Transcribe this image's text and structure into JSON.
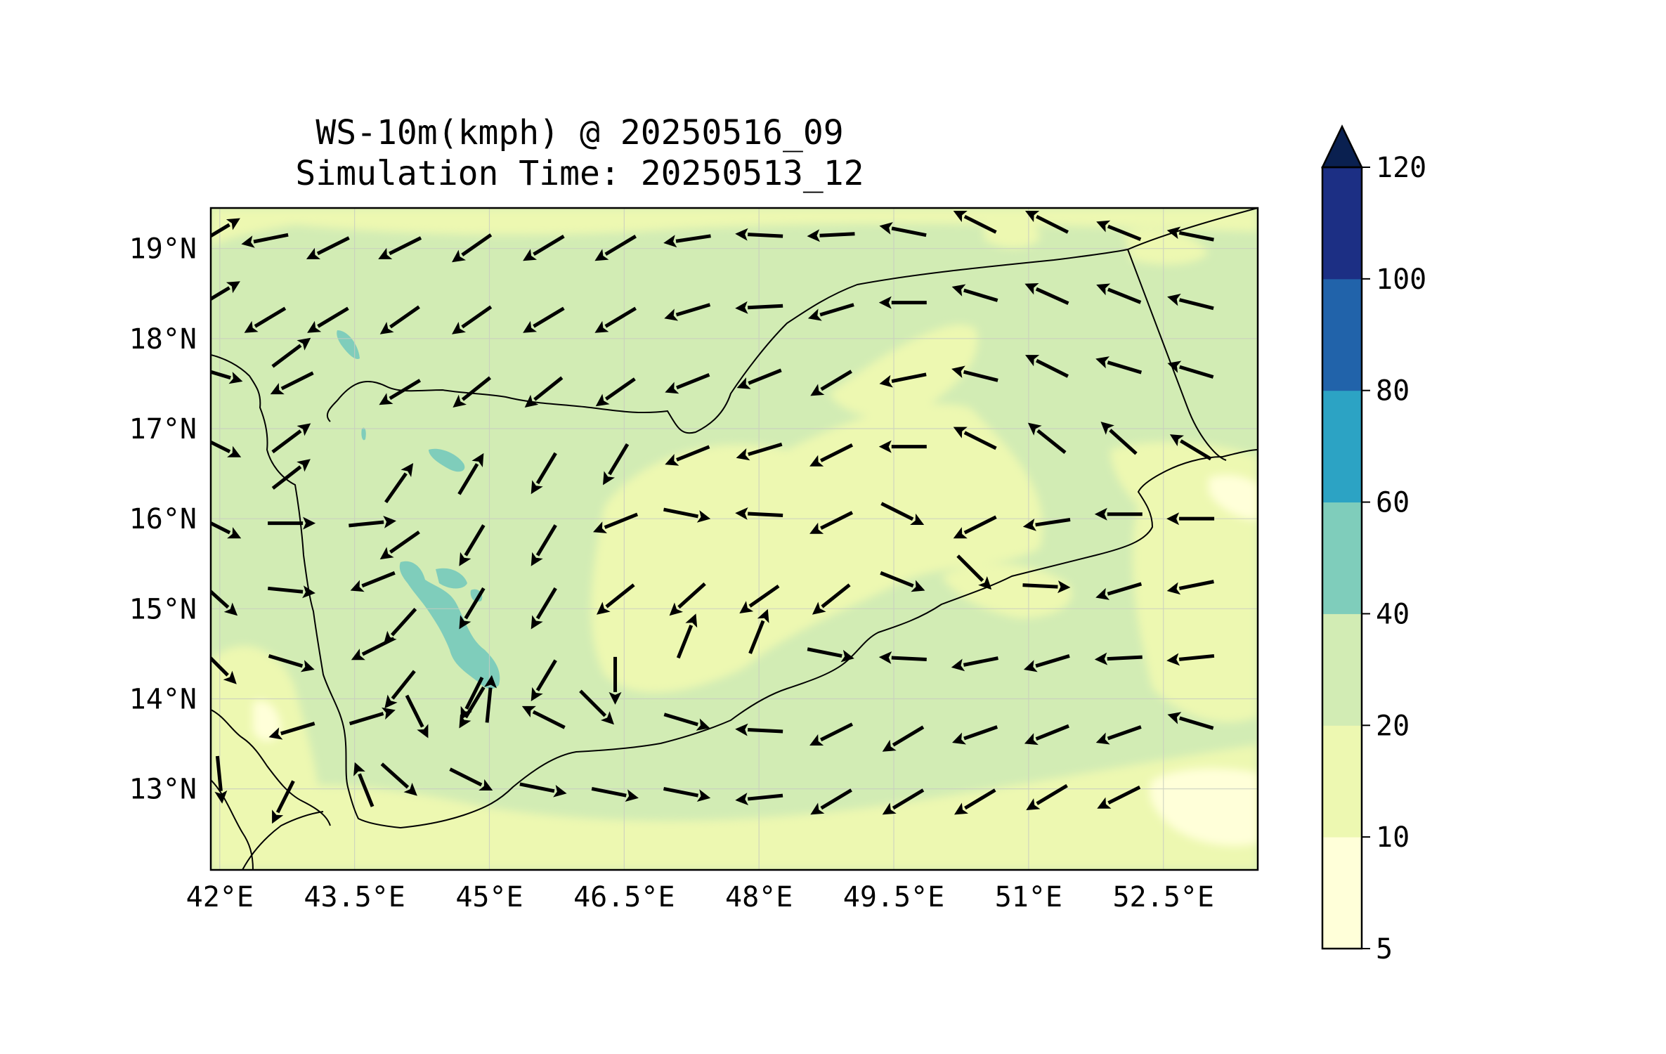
{
  "title": "WS-10m(kmph) @ 20250516_09",
  "subtitle": "Simulation Time: 20250513_12",
  "map": {
    "lon_range": [
      41.9,
      53.55
    ],
    "lat_range": [
      12.1,
      19.45
    ],
    "lon_ticks": [
      "42°E",
      "43.5°E",
      "45°E",
      "46.5°E",
      "48°E",
      "49.5°E",
      "51°E",
      "52.5°E"
    ],
    "lon_tick_values": [
      42,
      43.5,
      45,
      46.5,
      48,
      49.5,
      51,
      52.5
    ],
    "lat_ticks": [
      "19°N",
      "18°N",
      "17°N",
      "16°N",
      "15°N",
      "14°N",
      "13°N"
    ],
    "lat_tick_values": [
      19,
      18,
      17,
      16,
      15,
      14,
      13
    ],
    "grid": true,
    "background_color": "#d2ecb4"
  },
  "colorbar": {
    "levels": [
      "5",
      "10",
      "20",
      "40",
      "60",
      "80",
      "100",
      "120"
    ],
    "colors": [
      "#ffffd9",
      "#edf8b1",
      "#d2ecb4",
      "#7fcdbb",
      "#2ca3c4",
      "#2163aa",
      "#1c2f84"
    ],
    "extend_color": "#0a2050",
    "extend": "max"
  },
  "chart_data": {
    "type": "heatmap",
    "title": "WS-10m(kmph) @ 20250516_09",
    "subtitle": "Simulation Time: 20250513_12",
    "xlabel": "",
    "ylabel": "",
    "xlim": [
      41.9,
      53.55
    ],
    "ylim": [
      12.1,
      19.45
    ],
    "colorbar_label": "",
    "wind_vectors": [
      {
        "lon": 42.0,
        "lat": 19.2,
        "u": 1.0,
        "v": 0.6
      },
      {
        "lon": 42.5,
        "lat": 19.1,
        "u": -1.0,
        "v": -0.2
      },
      {
        "lon": 43.2,
        "lat": 19.0,
        "u": -1.0,
        "v": -0.5
      },
      {
        "lon": 44.0,
        "lat": 19.0,
        "u": -1.0,
        "v": -0.5
      },
      {
        "lon": 44.8,
        "lat": 19.0,
        "u": -1.0,
        "v": -0.7
      },
      {
        "lon": 45.6,
        "lat": 19.0,
        "u": -1.0,
        "v": -0.6
      },
      {
        "lon": 46.4,
        "lat": 19.0,
        "u": -1.0,
        "v": -0.6
      },
      {
        "lon": 47.2,
        "lat": 19.1,
        "u": -1.0,
        "v": -0.15
      },
      {
        "lon": 48.0,
        "lat": 19.15,
        "u": -1.0,
        "v": 0.05
      },
      {
        "lon": 48.8,
        "lat": 19.15,
        "u": -1.0,
        "v": -0.05
      },
      {
        "lon": 49.6,
        "lat": 19.2,
        "u": -1.0,
        "v": 0.2
      },
      {
        "lon": 50.4,
        "lat": 19.3,
        "u": -1.0,
        "v": 0.5
      },
      {
        "lon": 51.2,
        "lat": 19.3,
        "u": -1.0,
        "v": 0.5
      },
      {
        "lon": 52.0,
        "lat": 19.2,
        "u": -1.0,
        "v": 0.4
      },
      {
        "lon": 52.8,
        "lat": 19.15,
        "u": -1.0,
        "v": 0.2
      },
      {
        "lon": 42.0,
        "lat": 18.5,
        "u": 1.0,
        "v": 0.6
      },
      {
        "lon": 42.5,
        "lat": 18.2,
        "u": -1.0,
        "v": -0.6
      },
      {
        "lon": 43.2,
        "lat": 18.2,
        "u": -1.0,
        "v": -0.6
      },
      {
        "lon": 44.0,
        "lat": 18.2,
        "u": -1.0,
        "v": -0.7
      },
      {
        "lon": 44.8,
        "lat": 18.2,
        "u": -1.0,
        "v": -0.7
      },
      {
        "lon": 45.6,
        "lat": 18.2,
        "u": -1.0,
        "v": -0.6
      },
      {
        "lon": 46.4,
        "lat": 18.2,
        "u": -1.0,
        "v": -0.6
      },
      {
        "lon": 47.2,
        "lat": 18.3,
        "u": -1.0,
        "v": -0.3
      },
      {
        "lon": 48.0,
        "lat": 18.35,
        "u": -1.0,
        "v": -0.05
      },
      {
        "lon": 48.8,
        "lat": 18.3,
        "u": -1.0,
        "v": -0.3
      },
      {
        "lon": 49.6,
        "lat": 18.4,
        "u": -1.0,
        "v": 0.0
      },
      {
        "lon": 50.4,
        "lat": 18.5,
        "u": -1.0,
        "v": 0.3
      },
      {
        "lon": 51.2,
        "lat": 18.5,
        "u": -1.0,
        "v": 0.45
      },
      {
        "lon": 52.0,
        "lat": 18.5,
        "u": -1.0,
        "v": 0.4
      },
      {
        "lon": 52.8,
        "lat": 18.4,
        "u": -1.0,
        "v": 0.25
      },
      {
        "lon": 42.0,
        "lat": 17.6,
        "u": 1.0,
        "v": -0.3
      },
      {
        "lon": 42.8,
        "lat": 17.85,
        "u": 0.8,
        "v": 0.6
      },
      {
        "lon": 42.8,
        "lat": 17.5,
        "u": -1.0,
        "v": -0.5
      },
      {
        "lon": 44.0,
        "lat": 17.4,
        "u": -1.0,
        "v": -0.6
      },
      {
        "lon": 44.8,
        "lat": 17.4,
        "u": -1.0,
        "v": -0.8
      },
      {
        "lon": 45.6,
        "lat": 17.4,
        "u": -1.0,
        "v": -0.8
      },
      {
        "lon": 46.4,
        "lat": 17.4,
        "u": -1.0,
        "v": -0.7
      },
      {
        "lon": 47.2,
        "lat": 17.5,
        "u": -1.0,
        "v": -0.4
      },
      {
        "lon": 48.0,
        "lat": 17.55,
        "u": -1.0,
        "v": -0.4
      },
      {
        "lon": 48.8,
        "lat": 17.5,
        "u": -1.0,
        "v": -0.6
      },
      {
        "lon": 49.6,
        "lat": 17.55,
        "u": -1.0,
        "v": -0.2
      },
      {
        "lon": 50.4,
        "lat": 17.6,
        "u": -1.0,
        "v": 0.25
      },
      {
        "lon": 51.2,
        "lat": 17.7,
        "u": -1.0,
        "v": 0.5
      },
      {
        "lon": 52.0,
        "lat": 17.7,
        "u": -1.0,
        "v": 0.3
      },
      {
        "lon": 52.8,
        "lat": 17.65,
        "u": -1.0,
        "v": 0.3
      },
      {
        "lon": 42.0,
        "lat": 16.8,
        "u": 1.0,
        "v": -0.5
      },
      {
        "lon": 42.8,
        "lat": 16.9,
        "u": 0.8,
        "v": 0.6
      },
      {
        "lon": 42.8,
        "lat": 16.5,
        "u": 0.9,
        "v": 0.7
      },
      {
        "lon": 44.0,
        "lat": 16.4,
        "u": 0.7,
        "v": 1.0
      },
      {
        "lon": 44.8,
        "lat": 16.5,
        "u": 0.6,
        "v": 1.0
      },
      {
        "lon": 45.6,
        "lat": 16.5,
        "u": -0.6,
        "v": -1.0
      },
      {
        "lon": 46.4,
        "lat": 16.6,
        "u": -0.6,
        "v": -1.0
      },
      {
        "lon": 47.2,
        "lat": 16.7,
        "u": -1.0,
        "v": -0.4
      },
      {
        "lon": 48.0,
        "lat": 16.75,
        "u": -1.0,
        "v": -0.3
      },
      {
        "lon": 48.8,
        "lat": 16.7,
        "u": -1.0,
        "v": -0.5
      },
      {
        "lon": 49.6,
        "lat": 16.8,
        "u": -1.0,
        "v": 0.0
      },
      {
        "lon": 50.4,
        "lat": 16.9,
        "u": -1.0,
        "v": 0.5
      },
      {
        "lon": 51.2,
        "lat": 16.9,
        "u": -1.0,
        "v": 0.8
      },
      {
        "lon": 52.0,
        "lat": 16.9,
        "u": -1.0,
        "v": 0.9
      },
      {
        "lon": 52.8,
        "lat": 16.8,
        "u": -1.0,
        "v": 0.6
      },
      {
        "lon": 42.0,
        "lat": 15.9,
        "u": 1.0,
        "v": -0.5
      },
      {
        "lon": 42.8,
        "lat": 15.95,
        "u": 1.0,
        "v": 0.0
      },
      {
        "lon": 43.7,
        "lat": 15.95,
        "u": 1.0,
        "v": 0.1
      },
      {
        "lon": 44.0,
        "lat": 15.7,
        "u": -1.0,
        "v": -0.7
      },
      {
        "lon": 44.8,
        "lat": 15.7,
        "u": -0.6,
        "v": -1.0
      },
      {
        "lon": 45.6,
        "lat": 15.7,
        "u": -0.6,
        "v": -1.0
      },
      {
        "lon": 46.4,
        "lat": 15.95,
        "u": -1.0,
        "v": -0.4
      },
      {
        "lon": 47.2,
        "lat": 16.05,
        "u": 1.0,
        "v": -0.2
      },
      {
        "lon": 48.0,
        "lat": 16.05,
        "u": -1.0,
        "v": 0.05
      },
      {
        "lon": 48.8,
        "lat": 15.95,
        "u": -1.0,
        "v": -0.5
      },
      {
        "lon": 49.6,
        "lat": 16.05,
        "u": 1.0,
        "v": -0.5
      },
      {
        "lon": 50.4,
        "lat": 15.9,
        "u": -1.0,
        "v": -0.5
      },
      {
        "lon": 51.2,
        "lat": 15.95,
        "u": -1.0,
        "v": -0.15
      },
      {
        "lon": 52.0,
        "lat": 16.05,
        "u": -1.0,
        "v": 0.0
      },
      {
        "lon": 52.8,
        "lat": 16.0,
        "u": -1.0,
        "v": 0.0
      },
      {
        "lon": 42.0,
        "lat": 15.1,
        "u": 1.0,
        "v": -0.9
      },
      {
        "lon": 42.8,
        "lat": 15.2,
        "u": 1.0,
        "v": -0.1
      },
      {
        "lon": 43.7,
        "lat": 15.3,
        "u": -1.0,
        "v": -0.4
      },
      {
        "lon": 44.0,
        "lat": 14.8,
        "u": -0.9,
        "v": -1.0
      },
      {
        "lon": 44.8,
        "lat": 15.0,
        "u": -0.6,
        "v": -1.0
      },
      {
        "lon": 45.6,
        "lat": 15.0,
        "u": -0.6,
        "v": -1.0
      },
      {
        "lon": 46.4,
        "lat": 15.1,
        "u": -1.0,
        "v": -0.8
      },
      {
        "lon": 47.2,
        "lat": 15.1,
        "u": -1.0,
        "v": -0.9
      },
      {
        "lon": 48.0,
        "lat": 15.1,
        "u": -1.0,
        "v": -0.7
      },
      {
        "lon": 48.8,
        "lat": 15.1,
        "u": -1.0,
        "v": -0.8
      },
      {
        "lon": 49.6,
        "lat": 15.3,
        "u": 1.0,
        "v": -0.4
      },
      {
        "lon": 50.4,
        "lat": 15.4,
        "u": 1.0,
        "v": -1.0
      },
      {
        "lon": 51.2,
        "lat": 15.25,
        "u": 1.0,
        "v": -0.05
      },
      {
        "lon": 52.0,
        "lat": 15.2,
        "u": -1.0,
        "v": -0.3
      },
      {
        "lon": 52.8,
        "lat": 15.25,
        "u": -1.0,
        "v": -0.2
      },
      {
        "lon": 42.0,
        "lat": 14.35,
        "u": 1.0,
        "v": -1.0
      },
      {
        "lon": 42.8,
        "lat": 14.4,
        "u": 1.0,
        "v": -0.3
      },
      {
        "lon": 43.7,
        "lat": 14.55,
        "u": -1.0,
        "v": -0.5
      },
      {
        "lon": 44.0,
        "lat": 14.1,
        "u": -0.8,
        "v": -1.0
      },
      {
        "lon": 44.8,
        "lat": 14.0,
        "u": -0.5,
        "v": -1.0
      },
      {
        "lon": 45.0,
        "lat": 14.0,
        "u": 0.1,
        "v": 1.0
      },
      {
        "lon": 45.6,
        "lat": 14.2,
        "u": -0.6,
        "v": -1.0
      },
      {
        "lon": 46.4,
        "lat": 14.2,
        "u": 0.0,
        "v": -1.0
      },
      {
        "lon": 47.2,
        "lat": 14.7,
        "u": 0.4,
        "v": 1.0
      },
      {
        "lon": 48.0,
        "lat": 14.75,
        "u": 0.4,
        "v": 1.0
      },
      {
        "lon": 48.8,
        "lat": 14.5,
        "u": 1.0,
        "v": -0.2
      },
      {
        "lon": 49.6,
        "lat": 14.45,
        "u": -1.0,
        "v": 0.05
      },
      {
        "lon": 50.4,
        "lat": 14.4,
        "u": -1.0,
        "v": -0.2
      },
      {
        "lon": 51.2,
        "lat": 14.4,
        "u": -1.0,
        "v": -0.3
      },
      {
        "lon": 52.0,
        "lat": 14.45,
        "u": -1.0,
        "v": -0.05
      },
      {
        "lon": 52.8,
        "lat": 14.45,
        "u": -1.0,
        "v": -0.1
      },
      {
        "lon": 42.8,
        "lat": 13.65,
        "u": -1.0,
        "v": -0.3
      },
      {
        "lon": 43.7,
        "lat": 13.8,
        "u": 1.0,
        "v": 0.3
      },
      {
        "lon": 44.2,
        "lat": 13.8,
        "u": 0.5,
        "v": -1.0
      },
      {
        "lon": 44.8,
        "lat": 13.9,
        "u": -0.6,
        "v": -1.0
      },
      {
        "lon": 45.6,
        "lat": 13.8,
        "u": -1.0,
        "v": 0.5
      },
      {
        "lon": 46.2,
        "lat": 13.9,
        "u": 1.0,
        "v": -1.0
      },
      {
        "lon": 47.2,
        "lat": 13.75,
        "u": 1.0,
        "v": -0.3
      },
      {
        "lon": 48.0,
        "lat": 13.65,
        "u": -1.0,
        "v": 0.05
      },
      {
        "lon": 48.8,
        "lat": 13.6,
        "u": -1.0,
        "v": -0.5
      },
      {
        "lon": 49.6,
        "lat": 13.55,
        "u": -1.0,
        "v": -0.6
      },
      {
        "lon": 50.4,
        "lat": 13.6,
        "u": -1.0,
        "v": -0.35
      },
      {
        "lon": 51.2,
        "lat": 13.6,
        "u": -1.0,
        "v": -0.4
      },
      {
        "lon": 52.0,
        "lat": 13.6,
        "u": -1.0,
        "v": -0.35
      },
      {
        "lon": 52.8,
        "lat": 13.75,
        "u": -1.0,
        "v": 0.3
      },
      {
        "lon": 42.0,
        "lat": 13.1,
        "u": 0.1,
        "v": -1.0
      },
      {
        "lon": 42.7,
        "lat": 12.85,
        "u": -0.5,
        "v": -1.0
      },
      {
        "lon": 43.6,
        "lat": 13.05,
        "u": -0.4,
        "v": 1.0
      },
      {
        "lon": 44.0,
        "lat": 13.1,
        "u": 1.0,
        "v": -0.9
      },
      {
        "lon": 44.8,
        "lat": 13.1,
        "u": 1.0,
        "v": -0.5
      },
      {
        "lon": 45.6,
        "lat": 13.0,
        "u": 1.0,
        "v": -0.2
      },
      {
        "lon": 46.4,
        "lat": 12.95,
        "u": 1.0,
        "v": -0.2
      },
      {
        "lon": 47.2,
        "lat": 12.95,
        "u": 1.0,
        "v": -0.2
      },
      {
        "lon": 48.0,
        "lat": 12.9,
        "u": -1.0,
        "v": -0.1
      },
      {
        "lon": 48.8,
        "lat": 12.85,
        "u": -1.0,
        "v": -0.6
      },
      {
        "lon": 49.6,
        "lat": 12.85,
        "u": -1.0,
        "v": -0.6
      },
      {
        "lon": 50.4,
        "lat": 12.85,
        "u": -1.0,
        "v": -0.6
      },
      {
        "lon": 51.2,
        "lat": 12.9,
        "u": -1.0,
        "v": -0.6
      },
      {
        "lon": 52.0,
        "lat": 12.9,
        "u": -1.0,
        "v": -0.5
      }
    ]
  }
}
